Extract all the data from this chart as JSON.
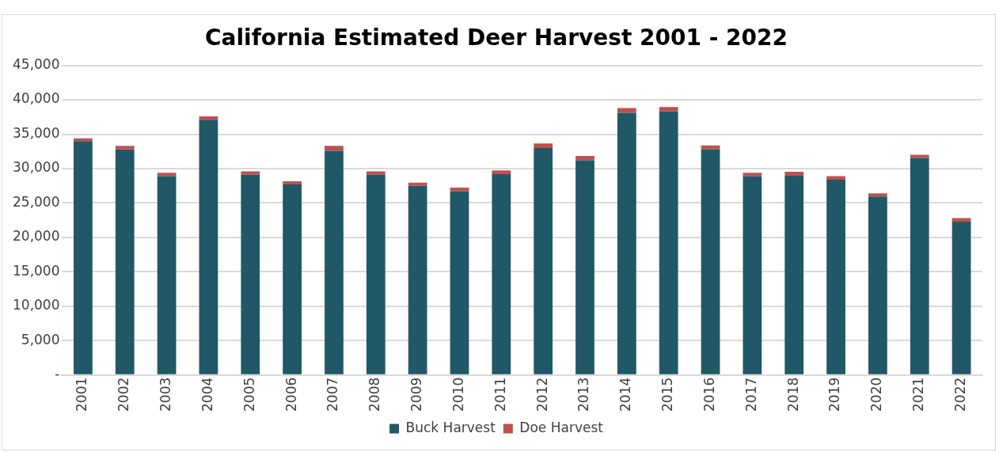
{
  "chart_data": {
    "type": "bar",
    "title": "California Estimated Deer Harvest 2001 - 2022",
    "stacked": true,
    "categories": [
      "2001",
      "2002",
      "2003",
      "2004",
      "2005",
      "2006",
      "2007",
      "2008",
      "2009",
      "2010",
      "2011",
      "2012",
      "2013",
      "2014",
      "2015",
      "2016",
      "2017",
      "2018",
      "2019",
      "2020",
      "2021",
      "2022"
    ],
    "series": [
      {
        "name": "Buck Harvest",
        "color": "#215868",
        "values": [
          34000,
          32800,
          28900,
          37100,
          29100,
          27700,
          32600,
          29100,
          27500,
          26700,
          29200,
          33000,
          31200,
          38100,
          38300,
          32800,
          28900,
          28950,
          28400,
          25950,
          31550,
          22300
        ]
      },
      {
        "name": "Doe Harvest",
        "color": "#c0504d",
        "values": [
          400,
          500,
          500,
          500,
          500,
          450,
          700,
          500,
          450,
          550,
          550,
          650,
          650,
          700,
          650,
          550,
          500,
          600,
          500,
          450,
          450,
          500
        ]
      }
    ],
    "ylim": [
      0,
      45000
    ],
    "yticks": [
      {
        "value": 0,
        "label": "-"
      },
      {
        "value": 5000,
        "label": "5,000"
      },
      {
        "value": 10000,
        "label": "10,000"
      },
      {
        "value": 15000,
        "label": "15,000"
      },
      {
        "value": 20000,
        "label": "20,000"
      },
      {
        "value": 25000,
        "label": "25,000"
      },
      {
        "value": 30000,
        "label": "30,000"
      },
      {
        "value": 35000,
        "label": "35,000"
      },
      {
        "value": 40000,
        "label": "40,000"
      },
      {
        "value": 45000,
        "label": "45,000"
      }
    ],
    "grid": "y",
    "legend": "bottom"
  }
}
